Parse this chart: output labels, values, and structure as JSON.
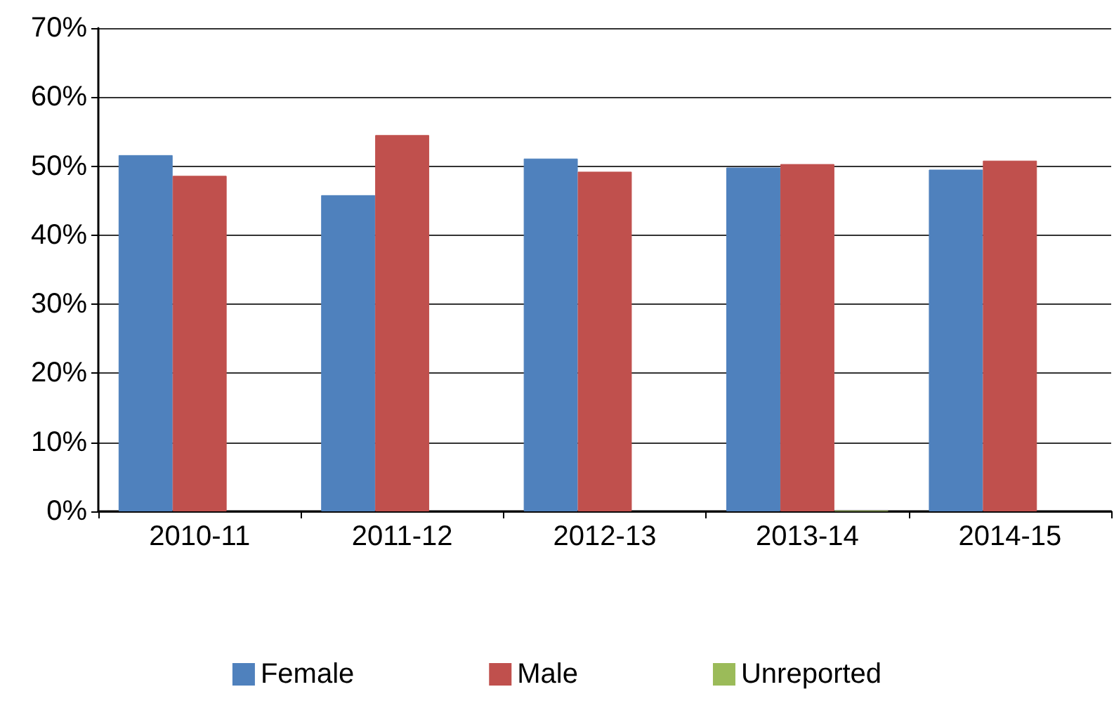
{
  "chart_data": {
    "type": "bar",
    "categories": [
      "2010-11",
      "2011-12",
      "2012-13",
      "2013-14",
      "2014-15"
    ],
    "series": [
      {
        "name": "Female",
        "color": "#4f81bd",
        "values": [
          51.6,
          45.8,
          51.1,
          49.8,
          49.5
        ]
      },
      {
        "name": "Male",
        "color": "#c0504d",
        "values": [
          48.6,
          54.5,
          49.2,
          50.3,
          50.8
        ]
      },
      {
        "name": "Unreported",
        "color": "#9bbb59",
        "values": [
          null,
          null,
          null,
          0.1,
          null
        ]
      }
    ],
    "ylim": [
      0,
      70
    ],
    "yticks": [
      {
        "value": 0,
        "label": "0%"
      },
      {
        "value": 10,
        "label": "10%"
      },
      {
        "value": 20,
        "label": "20%"
      },
      {
        "value": 30,
        "label": "30%"
      },
      {
        "value": 40,
        "label": "40%"
      },
      {
        "value": 50,
        "label": "50%"
      },
      {
        "value": 60,
        "label": "60%"
      },
      {
        "value": 70,
        "label": "70%"
      }
    ],
    "grid": "y",
    "legend": "bottom"
  }
}
